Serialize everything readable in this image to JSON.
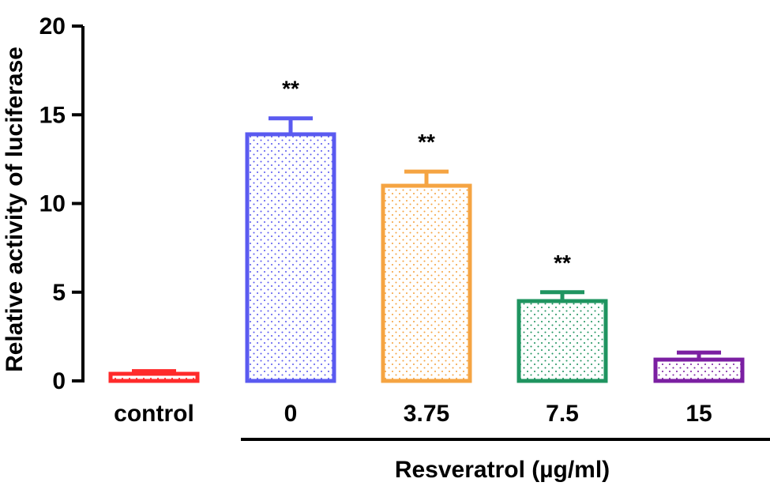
{
  "chart_data": {
    "type": "bar",
    "title": "",
    "ylabel": "Relative activity of luciferase",
    "xlabel": "",
    "group_label": "Resveratrol (µg/ml)",
    "grouped_categories": [
      "0",
      "3.75",
      "7.5",
      "15"
    ],
    "ylim": [
      0,
      20
    ],
    "yticks": [
      0,
      5,
      10,
      15,
      20
    ],
    "categories": [
      "control",
      "0",
      "3.75",
      "7.5",
      "15"
    ],
    "values": [
      0.4,
      13.9,
      11.0,
      4.5,
      1.2
    ],
    "errors": [
      0.15,
      0.9,
      0.8,
      0.5,
      0.4
    ],
    "significance": [
      "",
      "**",
      "**",
      "**",
      ""
    ],
    "colors": [
      "#ff2a2a",
      "#5a5af0",
      "#f5a442",
      "#1f9460",
      "#7b1fa2"
    ],
    "pattern": "dotted",
    "grid": false,
    "legend": "none"
  }
}
